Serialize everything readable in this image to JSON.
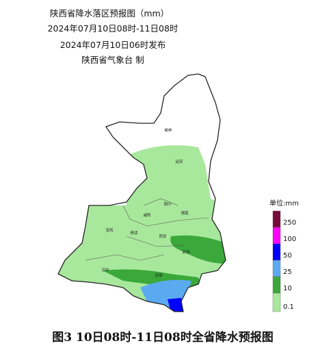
{
  "header": {
    "title": "陕西省降水落区预报图（mm）",
    "period": "2024年07月10日08时-11日08时",
    "issued": "2024年07月10日06时发布",
    "issuer": "陕西省气象台 制"
  },
  "cities": [
    "榆林",
    "延安",
    "铜川",
    "渭南",
    "咸阳",
    "宝鸡",
    "杨凌",
    "西安",
    "商洛",
    "汉中",
    "安康"
  ],
  "legend": {
    "title": "单位:mm",
    "items": [
      {
        "label": "250",
        "color": "#7a0a3c"
      },
      {
        "label": "100",
        "color": "#ff00ff"
      },
      {
        "label": "50",
        "color": "#0000ff"
      },
      {
        "label": "25",
        "color": "#5aaaf0"
      },
      {
        "label": "10",
        "color": "#3aa83a"
      },
      {
        "label": "0.1",
        "color": "#a8e89c"
      }
    ]
  },
  "caption": "图3  10日08时-11日08时全省降水预报图"
}
